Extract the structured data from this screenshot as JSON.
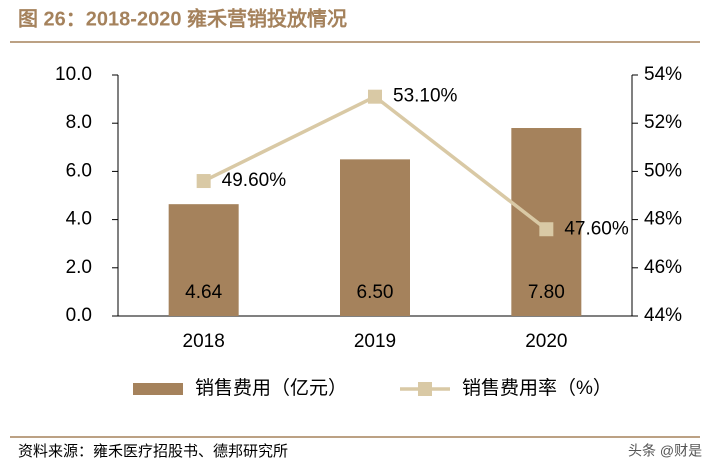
{
  "chart_data": {
    "type": "bar",
    "title": "图 26：2018-2020 雍禾营销投放情况",
    "categories": [
      "2018",
      "2019",
      "2020"
    ],
    "series": [
      {
        "name": "销售费用（亿元）",
        "type": "bar",
        "color": "#a5825c",
        "values": [
          4.64,
          6.5,
          7.8
        ],
        "value_labels": [
          "4.64",
          "6.50",
          "7.80"
        ]
      },
      {
        "name": "销售费用率（%）",
        "type": "line",
        "axis": "y2",
        "color": "#d9c9a5",
        "values": [
          49.6,
          53.1,
          47.6
        ],
        "value_labels": [
          "49.60%",
          "53.10%",
          "47.60%"
        ]
      }
    ],
    "ylim": [
      0,
      10
    ],
    "yticks": [
      {
        "value": 0,
        "label": "0.0"
      },
      {
        "value": 2,
        "label": "2.0"
      },
      {
        "value": 4,
        "label": "4.0"
      },
      {
        "value": 6,
        "label": "6.0"
      },
      {
        "value": 8,
        "label": "8.0"
      },
      {
        "value": 10,
        "label": "10.0"
      }
    ],
    "y2lim": [
      44,
      54
    ],
    "y2ticks": [
      {
        "value": 44,
        "label": "44%"
      },
      {
        "value": 46,
        "label": "46%"
      },
      {
        "value": 48,
        "label": "48%"
      },
      {
        "value": 50,
        "label": "50%"
      },
      {
        "value": 52,
        "label": "52%"
      },
      {
        "value": 54,
        "label": "54%"
      }
    ],
    "grid": false,
    "legend": "bottom"
  },
  "source": "资料来源：雍禾医疗招股书、德邦研究所",
  "watermark": "头条 @财是"
}
